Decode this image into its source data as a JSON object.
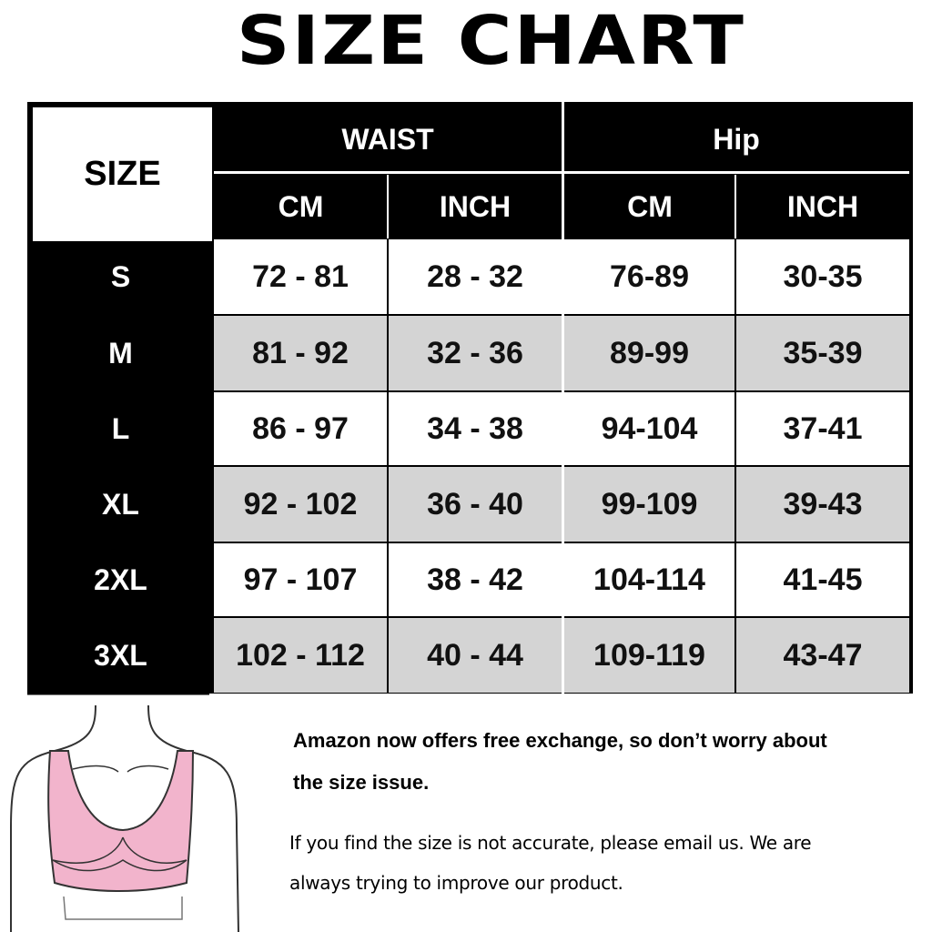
{
  "title": "SIZE CHART",
  "table": {
    "size_header": "SIZE",
    "groups": [
      "WAIST",
      "Hip"
    ],
    "units": [
      "CM",
      "INCH",
      "CM",
      "INCH"
    ],
    "rows": [
      {
        "size": "S",
        "values": [
          "72 - 81",
          "28 - 32",
          "76-89",
          "30-35"
        ]
      },
      {
        "size": "M",
        "values": [
          "81 - 92",
          "32 - 36",
          "89-99",
          "35-39"
        ]
      },
      {
        "size": "L",
        "values": [
          "86 - 97",
          "34 - 38",
          "94-104",
          "37-41"
        ]
      },
      {
        "size": "XL",
        "values": [
          "92 - 102",
          "36 - 40",
          "99-109",
          "39-43"
        ]
      },
      {
        "size": "2XL",
        "values": [
          "97 - 107",
          "38 - 42",
          "104-114",
          "41-45"
        ]
      },
      {
        "size": "3XL",
        "values": [
          "102 - 112",
          "40 - 44",
          "109-119",
          "43-47"
        ]
      }
    ]
  },
  "notes": {
    "bold_line1": "Amazon now offers free exchange, so don’t worry about",
    "bold_line2": "the size issue.",
    "line1": "If you find the size is not accurate, please email us. We are",
    "line2": "always trying to improve our product."
  },
  "colors": {
    "header": "#000000",
    "alt_row": "#d4d4d4",
    "bra": "#f2b4cc"
  }
}
